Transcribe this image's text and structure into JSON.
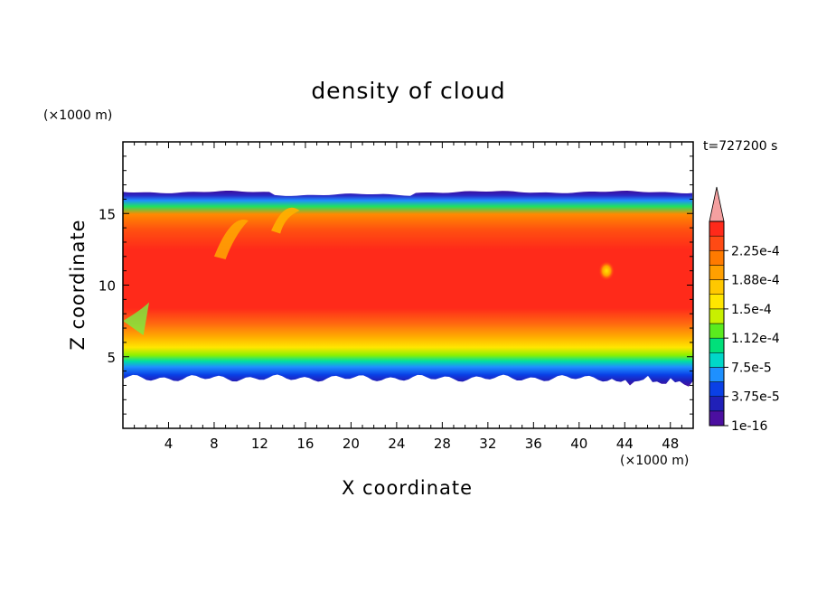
{
  "chart_data": {
    "type": "heatmap",
    "title": "density of cloud",
    "xlabel": "X coordinate",
    "ylabel": "Z coordinate",
    "x_unit": "(×1000 m)",
    "y_unit": "(×1000 m)",
    "time_label": "t=727200 s",
    "xlim": [
      0,
      50
    ],
    "ylim": [
      0,
      20
    ],
    "x_ticks": [
      4,
      8,
      12,
      16,
      20,
      24,
      28,
      32,
      36,
      40,
      44,
      48
    ],
    "y_ticks": [
      5,
      10,
      15
    ],
    "grid": false,
    "colorbar": {
      "labels": [
        "2.25e-4",
        "1.88e-4",
        "1.5e-4",
        "1.12e-4",
        "7.5e-5",
        "3.75e-5",
        "1e-16"
      ],
      "colors": [
        "#4b0fa0",
        "#2020b8",
        "#0a40e6",
        "#1e90ff",
        "#00d7c8",
        "#00e07a",
        "#5aeb1e",
        "#c8f000",
        "#ffe600",
        "#ffc800",
        "#ffa000",
        "#ff7a00",
        "#ff4a14",
        "#ff2a1a"
      ],
      "extend_color": "#f4a0a0",
      "extend": "max"
    },
    "cloud_layer": {
      "base_km": 3.5,
      "top_km": 16.5,
      "core_km": [
        8.5,
        14.5
      ],
      "core_value": "2.25e-4"
    }
  }
}
